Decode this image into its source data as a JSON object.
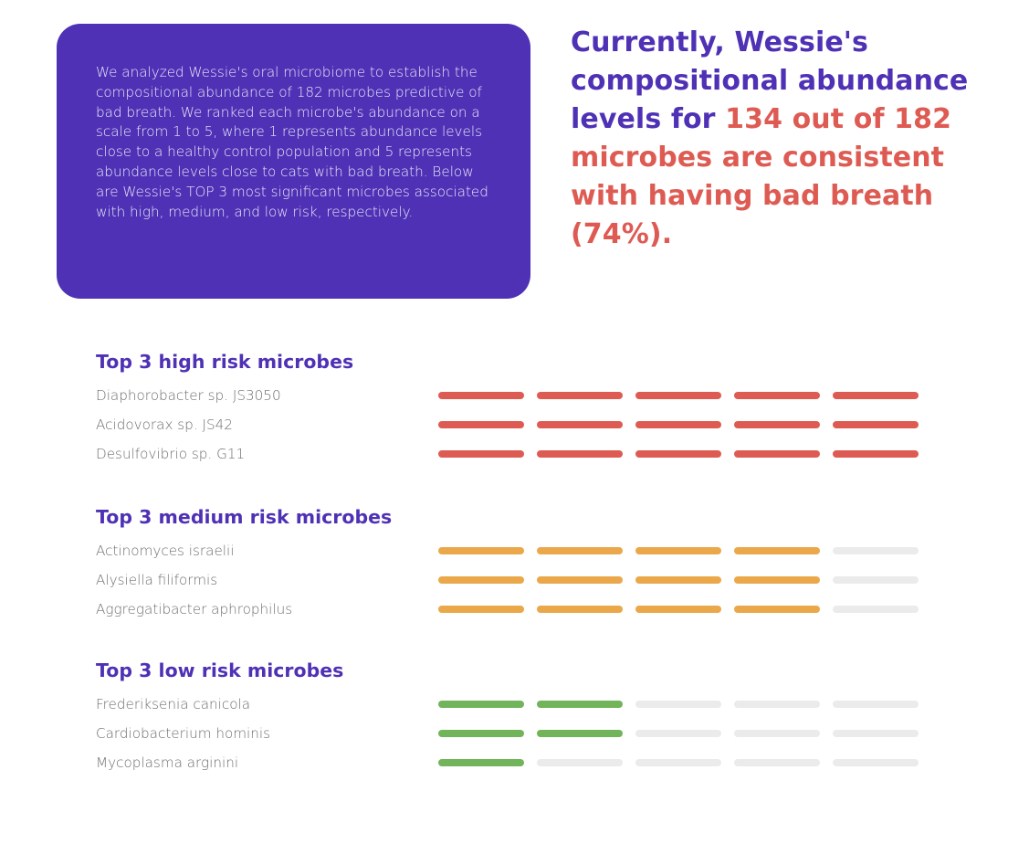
{
  "intro": {
    "text": "We analyzed Wessie's oral microbiome to establish the compositional abundance of 182 microbes predictive of bad breath. We ranked each microbe's abundance on a scale from 1 to 5, where 1 represents abundance levels close to a healthy control population and 5 represents abundance levels close to cats with bad breath. Below are Wessie's TOP 3 most significant microbes associated with high, medium, and low risk, respectively."
  },
  "headline": {
    "lead": "Currently, Wessie's compositional abundance levels for ",
    "highlight": "134 out of 182 microbes are consistent with having bad breath (74%)."
  },
  "colors": {
    "purple": "#4f31b5",
    "high": "#de5b53",
    "medium": "#eba84a",
    "low": "#71b45a",
    "empty": "#ebebeb"
  },
  "scale_max": 5,
  "sections": [
    {
      "title": "Top 3 high risk microbes",
      "level": "high",
      "microbes": [
        {
          "name": "Diaphorobacter sp. JS3050",
          "score": 5
        },
        {
          "name": "Acidovorax sp. JS42",
          "score": 5
        },
        {
          "name": "Desulfovibrio sp. G11",
          "score": 5
        }
      ]
    },
    {
      "title": "Top 3 medium risk microbes",
      "level": "medium",
      "microbes": [
        {
          "name": "Actinomyces israelii",
          "score": 4
        },
        {
          "name": "Alysiella filiformis",
          "score": 4
        },
        {
          "name": "Aggregatibacter aphrophilus",
          "score": 4
        }
      ]
    },
    {
      "title": "Top 3 low risk microbes",
      "level": "low",
      "microbes": [
        {
          "name": "Frederiksenia canicola",
          "score": 2
        },
        {
          "name": "Cardiobacterium hominis",
          "score": 2
        },
        {
          "name": "Mycoplasma arginini",
          "score": 1
        }
      ]
    }
  ]
}
